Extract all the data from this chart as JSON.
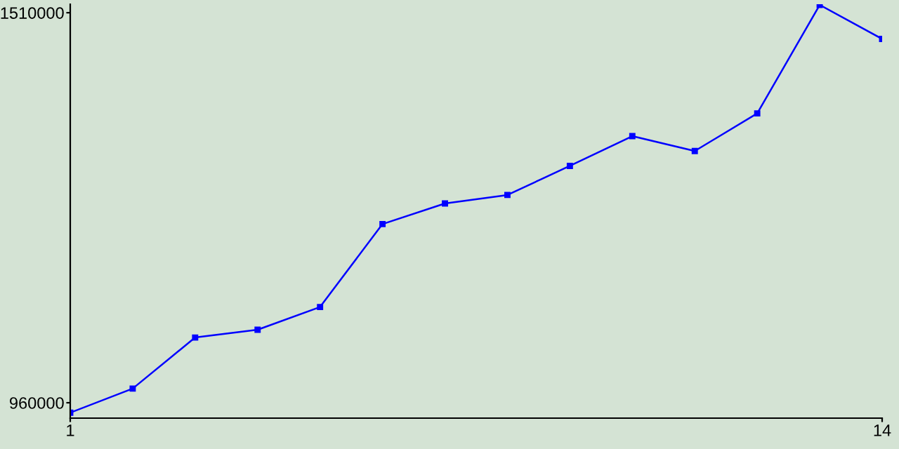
{
  "chart_data": {
    "type": "line",
    "x": [
      1,
      2,
      3,
      4,
      5,
      6,
      7,
      8,
      9,
      10,
      11,
      12,
      13,
      14
    ],
    "series": [
      {
        "color": "#0000ff",
        "values": [
          946000,
          980000,
          1052000,
          1063000,
          1095000,
          1212000,
          1241000,
          1253000,
          1294000,
          1336000,
          1315000,
          1368000,
          1521000,
          1473000
        ]
      }
    ],
    "xlim": [
      1,
      14
    ],
    "xticks": [
      1,
      14
    ],
    "ylim": [
      938300,
      1522000
    ],
    "yticks": [
      960000,
      1510000
    ],
    "marker": "square",
    "line_style": "solid",
    "grid": false,
    "legend": false
  }
}
